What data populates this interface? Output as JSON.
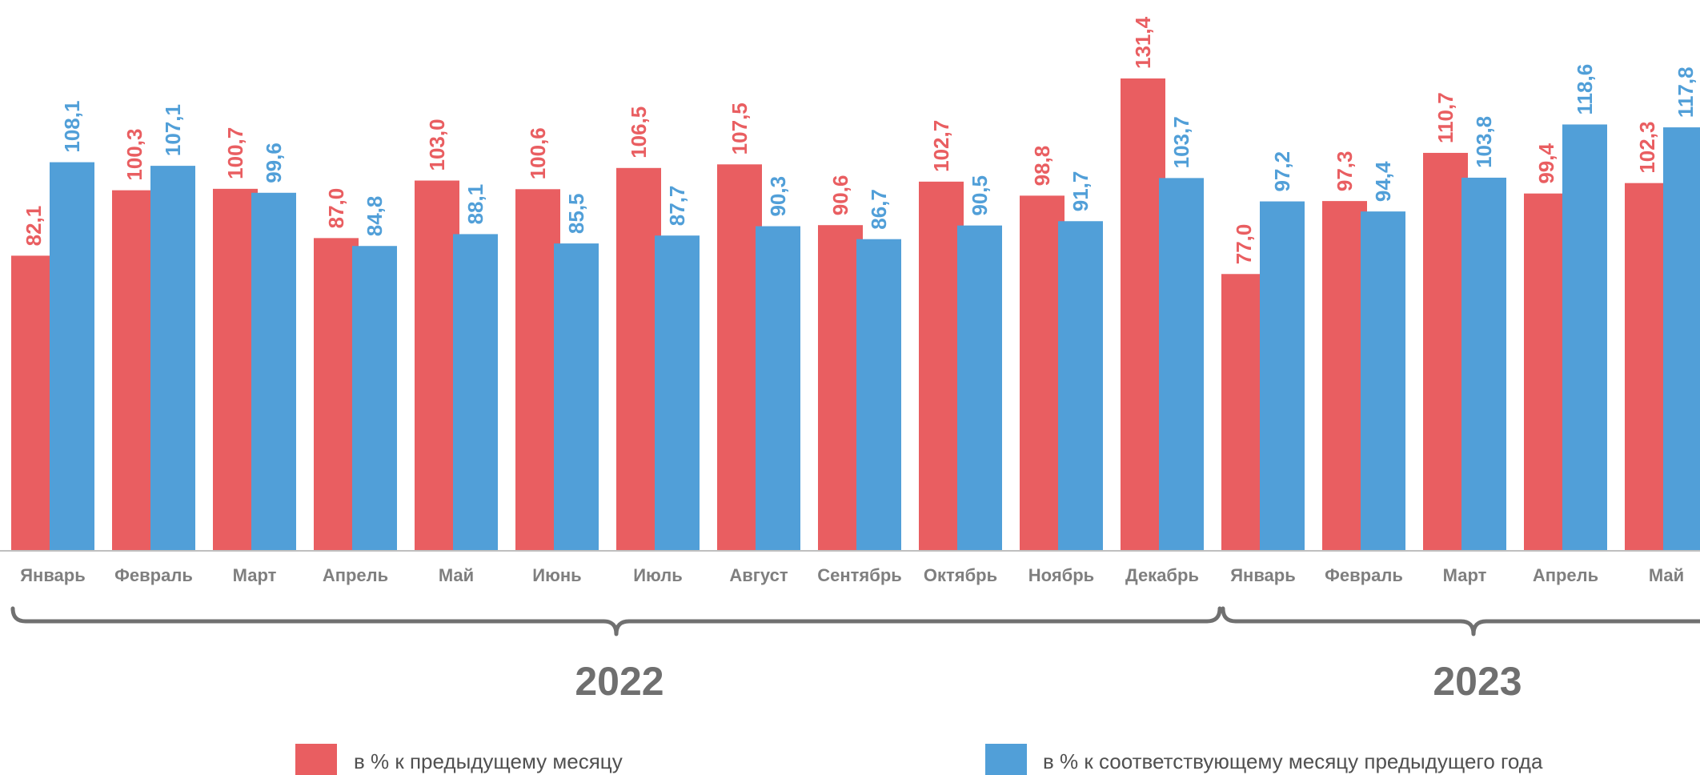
{
  "chart_data": {
    "type": "bar",
    "categories": [
      "Январь",
      "Февраль",
      "Март",
      "Апрель",
      "Май",
      "Июнь",
      "Июль",
      "Август",
      "Сентябрь",
      "Октябрь",
      "Ноябрь",
      "Декабрь",
      "Январь",
      "Февраль",
      "Март",
      "Апрель",
      "Май"
    ],
    "series": [
      {
        "name": "в % к предыдущему месяцу",
        "color": "#e95e61",
        "values": [
          82.1,
          100.3,
          100.7,
          87.0,
          103.0,
          100.6,
          106.5,
          107.5,
          90.6,
          102.7,
          98.8,
          131.4,
          77.0,
          97.3,
          110.7,
          99.4,
          102.3
        ],
        "labels": [
          "82,1",
          "100,3",
          "100,7",
          "87,0",
          "103,0",
          "100,6",
          "106,5",
          "107,5",
          "90,6",
          "102,7",
          "98,8",
          "131,4",
          "77,0",
          "97,3",
          "110,7",
          "99,4",
          "102,3"
        ]
      },
      {
        "name": "в % к соответствующему месяцу предыдущего года",
        "color": "#519fd8",
        "values": [
          108.1,
          107.1,
          99.6,
          84.8,
          88.1,
          85.5,
          87.7,
          90.3,
          86.7,
          90.5,
          91.7,
          103.7,
          97.2,
          94.4,
          103.8,
          118.6,
          117.8
        ],
        "labels": [
          "108,1",
          "107,1",
          "99,6",
          "84,8",
          "88,1",
          "85,5",
          "87,7",
          "90,3",
          "86,7",
          "90,5",
          "91,7",
          "103,7",
          "97,2",
          "94,4",
          "103,8",
          "118,6",
          "117,8"
        ]
      }
    ],
    "groups": [
      {
        "label": "2022",
        "start": 0,
        "end": 11
      },
      {
        "label": "2023",
        "start": 12,
        "end": 16
      }
    ],
    "ylim": [
      0,
      131.4
    ],
    "grid": false,
    "legend_position": "bottom",
    "title": "",
    "xlabel": "",
    "ylabel": ""
  }
}
